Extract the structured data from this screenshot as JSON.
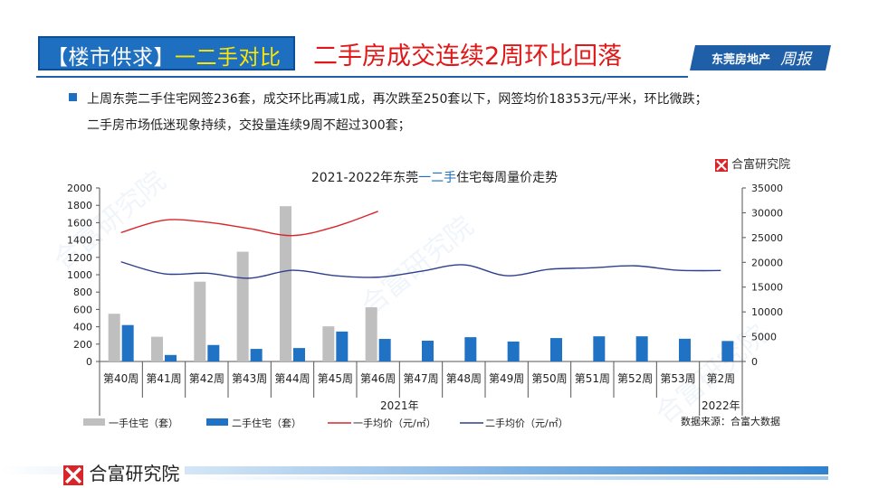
{
  "header": {
    "tag_prefix": "【楼市供求】",
    "tag_highlight": "一二手对比",
    "title": "二手房成交连续2周环比回落",
    "brand": "东莞房地产",
    "brand_script": "周报"
  },
  "bullets": [
    "上周东莞二手住宅网签236套，成交环比再减1成，再次跌至250套以下，网签均价18353元/平米，环比微跌；",
    "二手房市场低迷现象持续，交投量连续9周不超过300套；"
  ],
  "chart_title": {
    "prefix": "2021-2022年东莞",
    "hl1": "一二手",
    "suffix": "住宅每周量价走势"
  },
  "chart_logo": "合富研究院",
  "chart_source": "数据来源：合富大数据",
  "footer_logo": "合富研究院",
  "watermark": "合富研究院",
  "colors": {
    "primary_blue": "#1e6fbf",
    "bar_gray": "#bfbfbf",
    "bar_blue": "#1f72c4",
    "line_red": "#d9252a",
    "line_navy": "#2e3f8c",
    "title_red": "#e01818",
    "highlight_yellow": "#ffe600"
  },
  "chart_data": {
    "type": "bar+line",
    "categories": [
      "第40周",
      "第41周",
      "第42周",
      "第43周",
      "第44周",
      "第45周",
      "第46周",
      "第47周",
      "第48周",
      "第49周",
      "第50周",
      "第51周",
      "第52周",
      "第53周",
      "第2周"
    ],
    "year_labels": [
      "2021年",
      "2022年"
    ],
    "y_left": {
      "min": 0,
      "max": 2000,
      "ticks": [
        "0",
        "200",
        "400",
        "600",
        "800",
        "1000",
        "1200",
        "1400",
        "1600",
        "1800",
        "2000"
      ]
    },
    "y_right": {
      "min": 0,
      "max": 35000,
      "ticks": [
        "0",
        "5000",
        "10000",
        "15000",
        "20000",
        "25000",
        "30000",
        "35000"
      ]
    },
    "series": [
      {
        "name": "一手住宅（套）",
        "kind": "bar",
        "axis": "left",
        "color": "#bfbfbf",
        "values": [
          550,
          285,
          920,
          1265,
          1790,
          405,
          625,
          null,
          null,
          null,
          null,
          null,
          null,
          null,
          null
        ]
      },
      {
        "name": "二手住宅（套）",
        "kind": "bar",
        "axis": "left",
        "color": "#1f72c4",
        "values": [
          420,
          75,
          190,
          145,
          155,
          345,
          260,
          240,
          280,
          230,
          270,
          290,
          290,
          262,
          236
        ]
      },
      {
        "name": "一手均价（元/㎡）",
        "kind": "line",
        "axis": "right",
        "color": "#d9252a",
        "values": [
          26000,
          28500,
          28100,
          26800,
          25400,
          27200,
          30300,
          null,
          null,
          null,
          null,
          null,
          null,
          null,
          null
        ]
      },
      {
        "name": "二手均价（元/㎡）",
        "kind": "line",
        "axis": "right",
        "color": "#2e3f8c",
        "values": [
          20100,
          17700,
          17800,
          16800,
          18400,
          17300,
          17000,
          18200,
          19500,
          17300,
          18600,
          18900,
          19300,
          18400,
          18353
        ]
      }
    ],
    "legend_position": "bottom",
    "grid": false
  }
}
